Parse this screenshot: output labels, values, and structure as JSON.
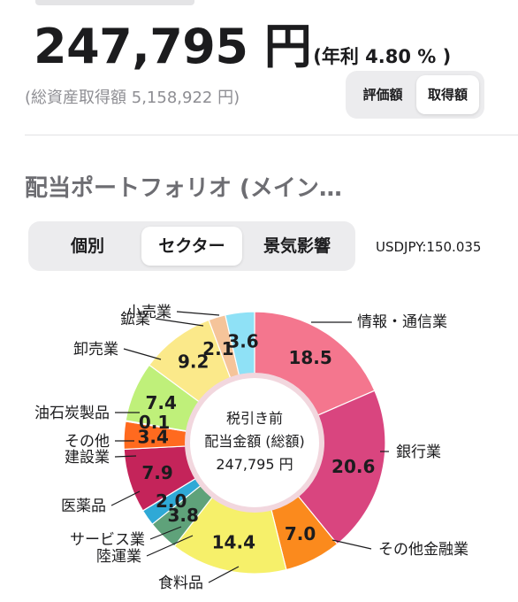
{
  "header": {
    "amount": "247,795 円",
    "yield": "(年利 4.80 % )",
    "acquisition": "(総資産取得額 5,158,922 円)",
    "toggle": [
      "評価額",
      "取得額"
    ],
    "selected_toggle": "取得額"
  },
  "section": {
    "title": "配当ポートフォリオ (メイン…",
    "tabs": [
      "個別",
      "セクター",
      "景気影響"
    ],
    "selected_tab": "セクター",
    "fx": "USDJPY:150.035"
  },
  "chart_data": {
    "type": "pie",
    "variant": "donut",
    "center_text": [
      "税引き前",
      "配当金額 (総額)",
      "247,795 円"
    ],
    "slices": [
      {
        "label": "情報・通信業",
        "value": 18.5,
        "color": "#f4768e"
      },
      {
        "label": "銀行業",
        "value": 20.6,
        "color": "#d9457f"
      },
      {
        "label": "その他金融業",
        "value": 7.0,
        "color": "#fb8a1d"
      },
      {
        "label": "食料品",
        "value": 14.4,
        "color": "#f6f06a"
      },
      {
        "label": "陸運業",
        "value": 3.8,
        "color": "#5fa27a"
      },
      {
        "label": "サービス業",
        "value": 2.0,
        "color": "#2fa9d6"
      },
      {
        "label": "医薬品",
        "value": 7.9,
        "color": "#c4245a"
      },
      {
        "label": "建設業",
        "value": 3.4,
        "color": "#ff6a1f"
      },
      {
        "label": "その他",
        "value": 0.1,
        "color": "#bdbdbd"
      },
      {
        "label": "油石炭製品",
        "value": 7.4,
        "color": "#bff07a"
      },
      {
        "label": "卸売業",
        "value": 9.2,
        "color": "#fbe98a"
      },
      {
        "label": "鉱業",
        "value": 2.1,
        "color": "#f5c49a"
      },
      {
        "label": "小売業",
        "value": 3.6,
        "color": "#8fe1f6"
      }
    ]
  }
}
